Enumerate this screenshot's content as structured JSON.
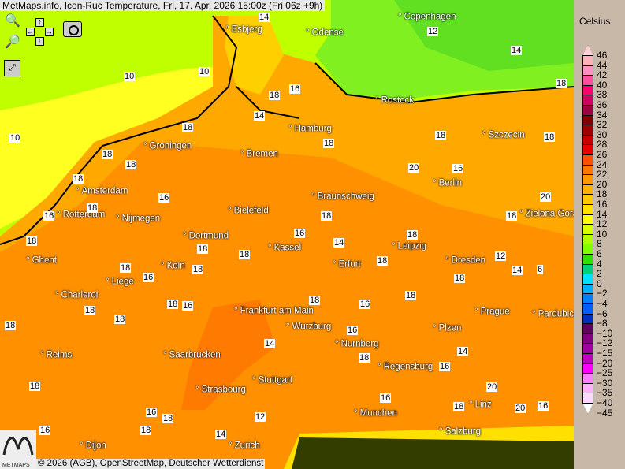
{
  "title": "MetMaps.info, Icon-Ruc Temperature, Fri, 17. Apr. 2026 15:00z (Fri 06z +9h)",
  "controls": {
    "zoom_in": "zoom-in",
    "zoom_out": "zoom-out",
    "pan_up": "↑",
    "pan_down": "↓",
    "pan_left": "←",
    "pan_right": "→",
    "camera": "camera",
    "fullscreen": "fullscreen"
  },
  "copyright": "© 2026 (AGB), OpenStreetMap, Deutscher Wetterdienst",
  "logo_text": "METMAPS",
  "legend": {
    "title": "Celsius",
    "labels": [
      "46",
      "44",
      "42",
      "40",
      "38",
      "36",
      "34",
      "32",
      "30",
      "28",
      "26",
      "24",
      "22",
      "20",
      "18",
      "16",
      "14",
      "12",
      "10",
      "8",
      "6",
      "4",
      "2",
      "0",
      "−2",
      "−4",
      "−6",
      "−8",
      "−10",
      "−12",
      "−15",
      "−20",
      "−25",
      "−30",
      "−35",
      "−40",
      "−45"
    ],
    "colors": [
      "#ffd0d8",
      "#ffb0b8",
      "#ff90c0",
      "#ff50a0",
      "#ff0070",
      "#d00060",
      "#a00040",
      "#800000",
      "#a00000",
      "#c80000",
      "#e80000",
      "#ff5000",
      "#ff7800",
      "#ff9800",
      "#ffb000",
      "#ffc800",
      "#ffe000",
      "#ffff00",
      "#d8ff00",
      "#b0ff00",
      "#80ff00",
      "#30e000",
      "#00d080",
      "#00e0ff",
      "#00b0ff",
      "#0080ff",
      "#0060ff",
      "#0030c0",
      "#600060",
      "#800080",
      "#a000a0",
      "#c000c0",
      "#ff00ff",
      "#ff80ff",
      "#ffb0ff",
      "#ffd8ff",
      "#ffffff"
    ]
  },
  "cities": [
    "Esbjerg",
    "Odense",
    "Copenhagen",
    "Rostock",
    "Hamburg",
    "Szczecin",
    "Groningen",
    "Bremen",
    "Amsterdam",
    "Berlin",
    "Braunschweig",
    "Rotterdam",
    "Nijmegen",
    "Bielefeld",
    "Zielona Gora",
    "Dortmund",
    "Kassel",
    "Leipzig",
    "Ghent",
    "Erfurt",
    "Dresden",
    "Koln",
    "Liege",
    "Charleroi",
    "Frankfurt am Main",
    "Prague",
    "Pardubice",
    "Wurzburg",
    "Plzen",
    "Nurnberg",
    "Reims",
    "Saarbrucken",
    "Regensburg",
    "Stuttgart",
    "Strasbourg",
    "Linz",
    "Munchen",
    "Salzburg",
    "Dijon",
    "Zurich"
  ],
  "temps": [
    "14",
    "10",
    "10",
    "10",
    "18",
    "16",
    "18",
    "18",
    "18",
    "18",
    "16",
    "18",
    "18",
    "16",
    "14",
    "18",
    "18",
    "16",
    "18",
    "18",
    "18",
    "18",
    "18",
    "18",
    "18",
    "16",
    "18",
    "16",
    "14",
    "18",
    "18",
    "16",
    "18",
    "18",
    "18",
    "20",
    "20",
    "18",
    "16",
    "18",
    "16",
    "18",
    "14",
    "12",
    "14",
    "16",
    "16",
    "18",
    "18",
    "12",
    "14",
    "6",
    "12",
    "14",
    "18",
    "16",
    "18",
    "20",
    "16",
    "18",
    "18",
    "16",
    "14",
    "20"
  ]
}
